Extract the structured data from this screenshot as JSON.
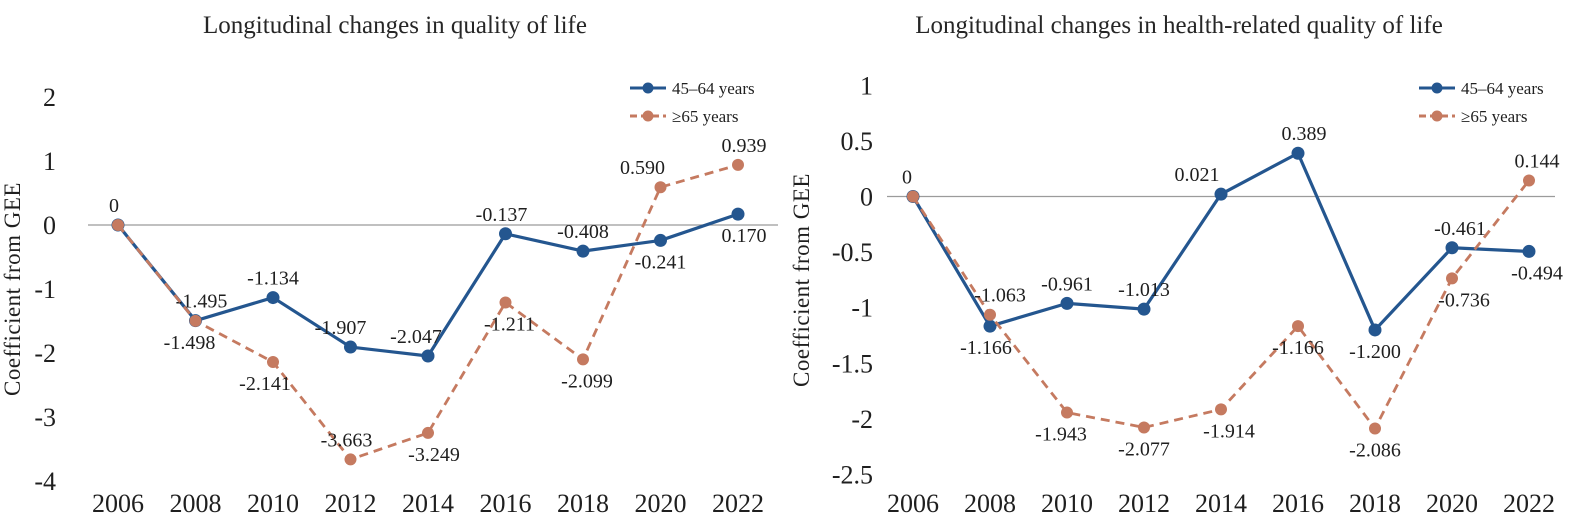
{
  "page": {
    "background": "#ffffff"
  },
  "colors": {
    "series_45_64": "#24568F",
    "series_65_plus": "#C57A60",
    "zero_line": "#9b9b9b",
    "text": "#1f1f1f"
  },
  "chart_data": [
    {
      "type": "line",
      "title": "Longitudinal changes in quality of life",
      "xlabel": "",
      "ylabel": "Coefficient from GEE",
      "categories": [
        "2006",
        "2008",
        "2010",
        "2012",
        "2014",
        "2016",
        "2018",
        "2020",
        "2022"
      ],
      "yticks": [
        2,
        1,
        0,
        -1,
        -2,
        -3,
        -4
      ],
      "ytick_labels": [
        "2",
        "1",
        "0",
        "-1",
        "-2",
        "-3",
        "-4"
      ],
      "ylim": [
        -4,
        2
      ],
      "grid": "zero-baseline-only",
      "legend_position": "top-right",
      "series": [
        {
          "id": "45-64-years",
          "name": "45–64 years",
          "style": "solid",
          "color": "#24568F",
          "values": [
            0,
            -1.495,
            -1.134,
            -1.907,
            -2.047,
            -0.137,
            -0.408,
            -0.241,
            0.17
          ],
          "labels": [
            "0",
            "-1.495",
            "-1.134",
            "-1.907",
            "-2.047",
            "-0.137",
            "-0.408",
            "-0.241",
            "0.170"
          ],
          "label_pos": [
            "above",
            "above",
            "above",
            "above",
            "above",
            "above",
            "above",
            "below",
            "below"
          ],
          "label_dx": [
            -4,
            6,
            0,
            -10,
            -12,
            -4,
            0,
            0,
            6
          ]
        },
        {
          "id": "65-plus-years",
          "name": "≥65 years",
          "style": "dashed",
          "color": "#C57A60",
          "values": [
            0,
            -1.498,
            -2.141,
            -3.663,
            -3.249,
            -1.211,
            -2.099,
            0.59,
            0.939
          ],
          "labels": [
            "",
            "-1.498",
            "-2.141",
            "-3.663",
            "-3.249",
            "-1.211",
            "-2.099",
            "0.590",
            "0.939"
          ],
          "label_pos": [
            "none",
            "below",
            "below",
            "above",
            "below",
            "below",
            "below",
            "above",
            "above"
          ],
          "label_dx": [
            0,
            -6,
            -8,
            -4,
            6,
            4,
            4,
            -18,
            6
          ]
        }
      ]
    },
    {
      "type": "line",
      "title": "Longitudinal changes in health-related quality of life",
      "xlabel": "",
      "ylabel": "Coefficient from GEE",
      "categories": [
        "2006",
        "2008",
        "2010",
        "2012",
        "2014",
        "2016",
        "2018",
        "2020",
        "2022"
      ],
      "yticks": [
        1,
        0.5,
        0,
        -0.5,
        -1,
        -1.5,
        -2,
        -2.5
      ],
      "ytick_labels": [
        "1",
        "0.5",
        "0",
        "-0.5",
        "-1",
        "-1.5",
        "-2",
        "-2.5"
      ],
      "ylim": [
        -2.5,
        1
      ],
      "grid": "zero-baseline-only",
      "legend_position": "top-right",
      "series": [
        {
          "id": "45-64-years",
          "name": "45–64 years",
          "style": "solid",
          "color": "#24568F",
          "values": [
            0,
            -1.166,
            -0.961,
            -1.013,
            0.021,
            0.389,
            -1.2,
            -0.461,
            -0.494
          ],
          "labels": [
            "0",
            "-1.166",
            "-0.961",
            "-1.013",
            "0.021",
            "0.389",
            "-1.200",
            "-0.461",
            "-0.494"
          ],
          "label_pos": [
            "above",
            "below",
            "above",
            "above",
            "above",
            "above",
            "below",
            "above",
            "below"
          ],
          "label_dx": [
            -6,
            -4,
            0,
            0,
            -24,
            6,
            0,
            8,
            8
          ]
        },
        {
          "id": "65-plus-years",
          "name": "≥65 years",
          "style": "dashed",
          "color": "#C57A60",
          "values": [
            0,
            -1.063,
            -1.943,
            -2.077,
            -1.914,
            -1.166,
            -2.086,
            -0.736,
            0.144
          ],
          "labels": [
            "",
            "-1.063",
            "-1.943",
            "-2.077",
            "-1.914",
            "-1.166",
            "-2.086",
            "-0.736",
            "0.144"
          ],
          "label_pos": [
            "none",
            "above",
            "below",
            "below",
            "below",
            "below",
            "below",
            "below",
            "above"
          ],
          "label_dx": [
            0,
            10,
            -6,
            0,
            8,
            0,
            0,
            12,
            8
          ]
        }
      ]
    }
  ]
}
